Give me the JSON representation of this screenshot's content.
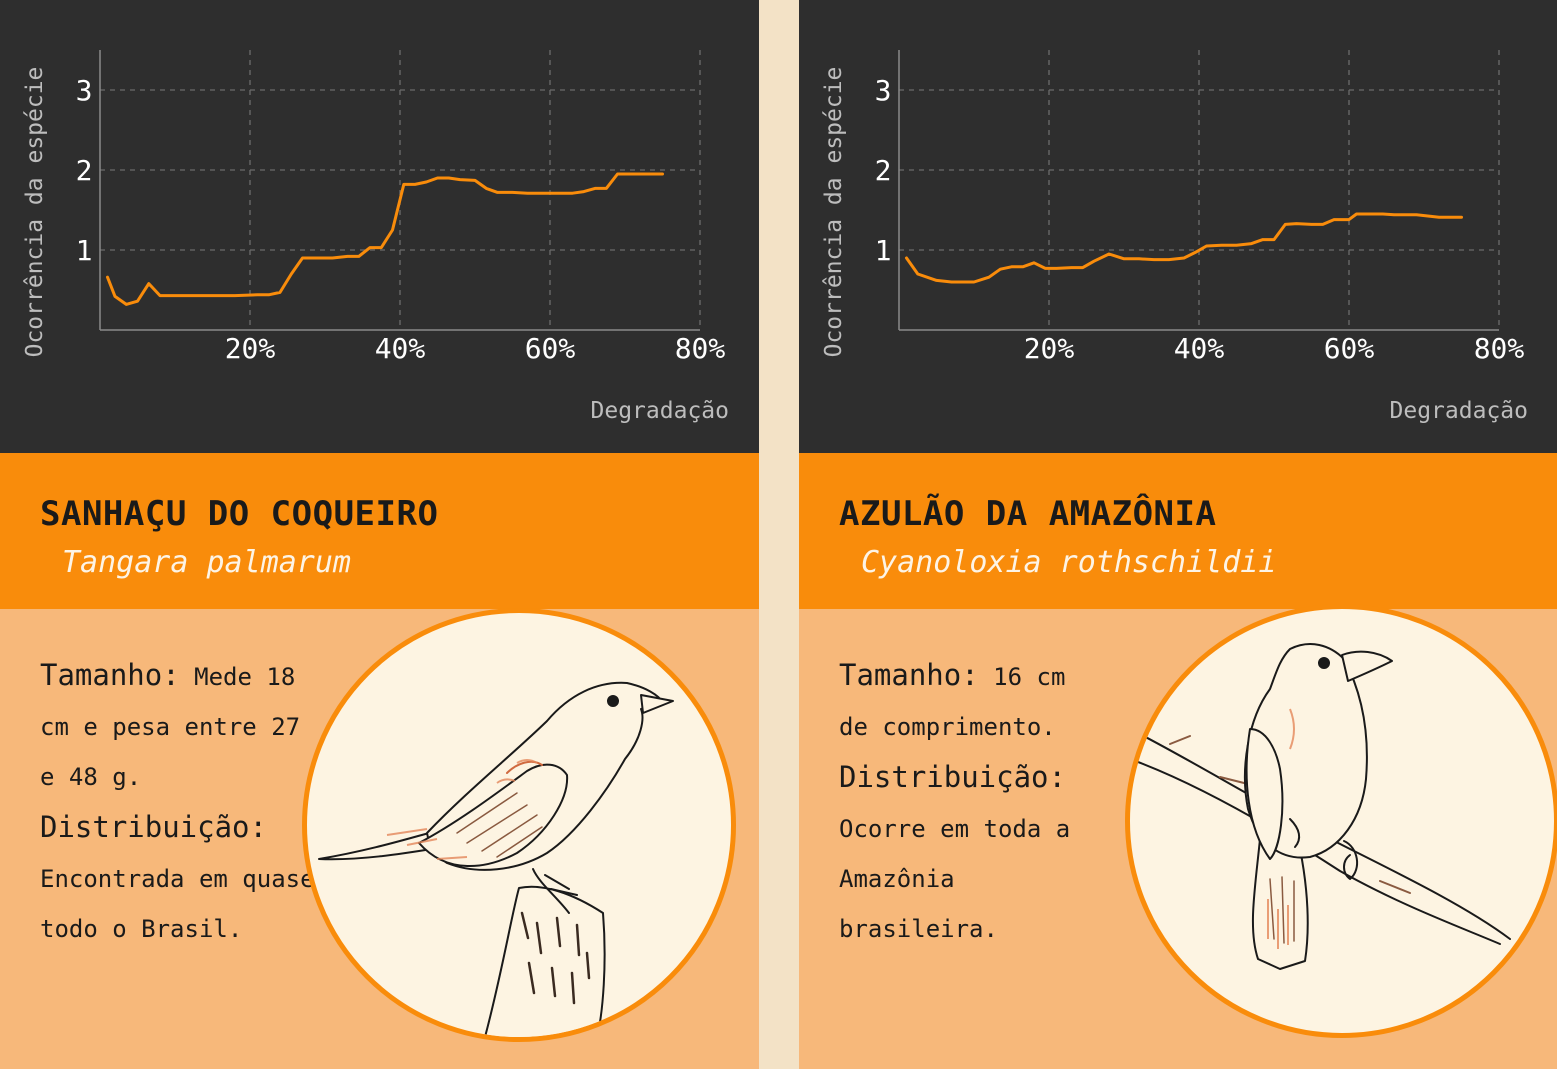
{
  "colors": {
    "background": "#f3e2c6",
    "chart_bg": "#2e2e2e",
    "line": "#f98c0b",
    "title_band": "#f98c0b",
    "info_bg": "#f7b87a",
    "circle_bg": "#fdf4e2"
  },
  "cards": [
    {
      "common_name": "SANHAÇU DO COQUEIRO",
      "scientific_name": "Tangara palmarum",
      "size_label": "Tamanho:",
      "size_text": "Mede 18 cm e pesa entre 27 e 48 g.",
      "distribution_label": "Distribuição:",
      "distribution_text": "Encontrada em quase todo o Brasil.",
      "illustration": "bird-on-stump-icon"
    },
    {
      "common_name": "AZULÃO DA AMAZÔNIA",
      "scientific_name": "Cyanoloxia rothschildii",
      "size_label": "Tamanho:",
      "size_text": "16 cm de comprimento.",
      "distribution_label": "Distribuição:",
      "distribution_text": "Ocorre em toda a Amazônia brasileira.",
      "illustration": "bird-on-branch-icon"
    }
  ],
  "chart_data": [
    {
      "type": "line",
      "xlabel": "Degradação",
      "ylabel": "Ocorrência da espécie",
      "xticks": [
        "20%",
        "40%",
        "60%",
        "80%"
      ],
      "yticks": [
        "1",
        "2",
        "3"
      ],
      "xlim": [
        0,
        80
      ],
      "ylim": [
        0,
        3.5
      ],
      "grid": true,
      "x": [
        1,
        2,
        3.5,
        5,
        6.5,
        8,
        10,
        12,
        15,
        18,
        21,
        22.5,
        24,
        25.5,
        27,
        29,
        31,
        33,
        34.5,
        36,
        37.5,
        39,
        40.5,
        42,
        43.5,
        45,
        46.5,
        48,
        50,
        51.5,
        53,
        55,
        57,
        60,
        63,
        64.5,
        66,
        67.5,
        69,
        72,
        75
      ],
      "y": [
        0.66,
        0.42,
        0.32,
        0.36,
        0.58,
        0.43,
        0.43,
        0.43,
        0.43,
        0.43,
        0.44,
        0.44,
        0.47,
        0.7,
        0.9,
        0.9,
        0.9,
        0.92,
        0.92,
        1.03,
        1.03,
        1.25,
        1.82,
        1.82,
        1.85,
        1.9,
        1.9,
        1.88,
        1.87,
        1.77,
        1.72,
        1.72,
        1.71,
        1.71,
        1.71,
        1.73,
        1.77,
        1.77,
        1.95,
        1.95,
        1.95
      ]
    },
    {
      "type": "line",
      "xlabel": "Degradação",
      "ylabel": "Ocorrência da espécie",
      "xticks": [
        "20%",
        "40%",
        "60%",
        "80%"
      ],
      "yticks": [
        "1",
        "2",
        "3"
      ],
      "xlim": [
        0,
        80
      ],
      "ylim": [
        0,
        3.5
      ],
      "grid": true,
      "x": [
        1,
        2.5,
        5,
        7,
        10,
        12,
        13.5,
        15,
        16.5,
        18,
        19.5,
        21,
        23,
        24.5,
        26,
        28,
        30,
        32,
        34,
        36,
        38,
        39.5,
        41,
        43,
        45,
        47,
        48.5,
        50,
        51.5,
        53,
        55,
        56.5,
        58,
        60,
        61,
        63,
        64.5,
        66,
        68,
        69,
        72,
        75
      ],
      "y": [
        0.9,
        0.7,
        0.62,
        0.6,
        0.6,
        0.66,
        0.76,
        0.79,
        0.79,
        0.84,
        0.77,
        0.77,
        0.78,
        0.78,
        0.86,
        0.95,
        0.89,
        0.89,
        0.88,
        0.88,
        0.9,
        0.97,
        1.05,
        1.06,
        1.06,
        1.08,
        1.13,
        1.13,
        1.32,
        1.33,
        1.32,
        1.32,
        1.38,
        1.38,
        1.45,
        1.45,
        1.45,
        1.44,
        1.44,
        1.44,
        1.41,
        1.41
      ]
    }
  ]
}
